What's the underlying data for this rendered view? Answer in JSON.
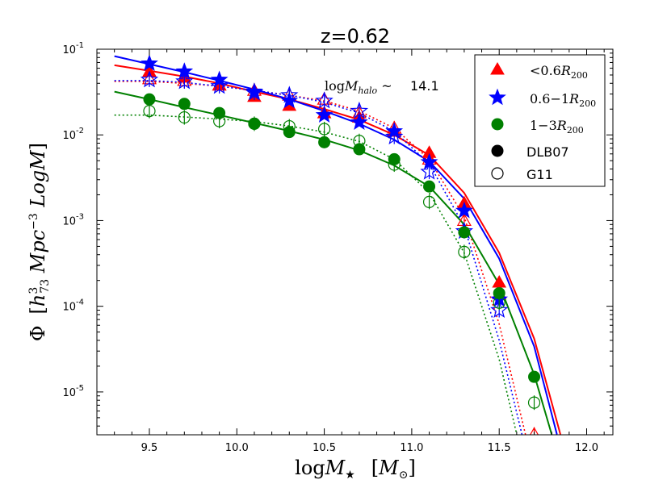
{
  "chart_data": {
    "type": "line",
    "title": "z=0.62",
    "xlabel": "logM★ [M⊙]",
    "ylabel": "Φ [h₇₃³ Mpc⁻³ LogM]",
    "xlim": [
      9.2,
      12.15
    ],
    "ylim_log10": [
      -5.5,
      -1
    ],
    "xticks": [
      "9.5",
      "10.0",
      "10.5",
      "11.0",
      "11.5",
      "12.0"
    ],
    "yticks": [
      {
        "base": "10",
        "exp": "-5",
        "log": -5
      },
      {
        "base": "10",
        "exp": "-4",
        "log": -4
      },
      {
        "base": "10",
        "exp": "-3",
        "log": -3
      },
      {
        "base": "10",
        "exp": "-2",
        "log": -2
      },
      {
        "base": "10",
        "exp": "-1",
        "log": -1
      }
    ],
    "annotation": {
      "label": "logM_halo ~",
      "value": "14.1"
    },
    "colors": {
      "red": "#ff0000",
      "blue": "#0000ff",
      "green": "#008000"
    },
    "x": [
      9.5,
      9.7,
      9.9,
      10.1,
      10.3,
      10.5,
      10.7,
      10.9,
      11.1,
      11.3,
      11.5,
      11.7
    ],
    "series": [
      {
        "name": "<0.6R200 DLB07",
        "color": "#ff0000",
        "marker": "triangle",
        "filled": true,
        "values": [
          0.055,
          0.047,
          0.038,
          0.028,
          0.022,
          0.018,
          0.016,
          0.011,
          0.0062,
          0.0016,
          0.00019,
          null
        ]
      },
      {
        "name": "<0.6R200 G11",
        "color": "#ff0000",
        "marker": "triangle",
        "filled": false,
        "values": [
          0.045,
          0.043,
          0.038,
          0.033,
          0.029,
          0.026,
          0.018,
          0.012,
          0.0052,
          0.001,
          0.00014,
          3.2e-06
        ]
      },
      {
        "name": "0.6-1R200 DLB07",
        "color": "#0000ff",
        "marker": "star",
        "filled": true,
        "values": [
          0.068,
          0.055,
          0.044,
          0.032,
          0.025,
          0.017,
          0.014,
          0.011,
          0.0048,
          0.0013,
          0.00012,
          null
        ]
      },
      {
        "name": "0.6-1R200 G11",
        "color": "#0000ff",
        "marker": "star",
        "filled": false,
        "values": [
          0.044,
          0.042,
          0.037,
          0.031,
          0.029,
          0.025,
          0.019,
          0.0095,
          0.0037,
          0.00075,
          9e-05,
          null
        ]
      },
      {
        "name": "1-3R200 DLB07",
        "color": "#008000",
        "marker": "circle",
        "filled": true,
        "values": [
          0.026,
          0.023,
          0.018,
          0.0135,
          0.0108,
          0.0082,
          0.0068,
          0.0052,
          0.0025,
          0.00073,
          0.000142,
          1.5e-05
        ]
      },
      {
        "name": "1-3R200 G11",
        "color": "#008000",
        "marker": "circle",
        "filled": false,
        "values": [
          0.019,
          0.016,
          0.0145,
          0.0135,
          0.0126,
          0.0117,
          0.0085,
          0.0045,
          0.00165,
          0.00043,
          0.00011,
          7.5e-06
        ]
      }
    ],
    "fits": [
      {
        "name": "<0.6R200 DLB07 fit",
        "color": "#ff0000",
        "style": "solid",
        "points": [
          [
            9.3,
            0.065
          ],
          [
            9.5,
            0.056
          ],
          [
            9.7,
            0.048
          ],
          [
            9.9,
            0.04
          ],
          [
            10.1,
            0.032
          ],
          [
            10.3,
            0.026
          ],
          [
            10.5,
            0.02
          ],
          [
            10.7,
            0.015
          ],
          [
            10.9,
            0.01
          ],
          [
            11.1,
            0.0058
          ],
          [
            11.3,
            0.0021
          ],
          [
            11.5,
            0.00042
          ],
          [
            11.7,
            4.2e-05
          ],
          [
            11.85,
            3.2e-06
          ]
        ]
      },
      {
        "name": "<0.6R200 G11 fit",
        "color": "#ff0000",
        "style": "dotted",
        "points": [
          [
            9.3,
            0.042
          ],
          [
            9.5,
            0.042
          ],
          [
            9.7,
            0.04
          ],
          [
            9.9,
            0.037
          ],
          [
            10.1,
            0.033
          ],
          [
            10.3,
            0.029
          ],
          [
            10.5,
            0.025
          ],
          [
            10.7,
            0.019
          ],
          [
            10.9,
            0.012
          ],
          [
            11.1,
            0.0052
          ],
          [
            11.3,
            0.0011
          ],
          [
            11.5,
            6.2e-05
          ],
          [
            11.65,
            3.2e-06
          ]
        ]
      },
      {
        "name": "0.6-1R200 DLB07 fit",
        "color": "#0000ff",
        "style": "solid",
        "points": [
          [
            9.3,
            0.083
          ],
          [
            9.5,
            0.067
          ],
          [
            9.7,
            0.054
          ],
          [
            9.9,
            0.043
          ],
          [
            10.1,
            0.034
          ],
          [
            10.3,
            0.026
          ],
          [
            10.5,
            0.019
          ],
          [
            10.7,
            0.0135
          ],
          [
            10.9,
            0.0088
          ],
          [
            11.1,
            0.0049
          ],
          [
            11.3,
            0.0018
          ],
          [
            11.5,
            0.00036
          ],
          [
            11.7,
            3.4e-05
          ],
          [
            11.83,
            3.2e-06
          ]
        ]
      },
      {
        "name": "0.6-1R200 G11 fit",
        "color": "#0000ff",
        "style": "dotted",
        "points": [
          [
            9.3,
            0.043
          ],
          [
            9.5,
            0.043
          ],
          [
            9.7,
            0.041
          ],
          [
            9.9,
            0.037
          ],
          [
            10.1,
            0.033
          ],
          [
            10.3,
            0.029
          ],
          [
            10.5,
            0.024
          ],
          [
            10.7,
            0.018
          ],
          [
            10.9,
            0.011
          ],
          [
            11.1,
            0.0046
          ],
          [
            11.3,
            0.00085
          ],
          [
            11.5,
            4e-05
          ],
          [
            11.63,
            3.2e-06
          ]
        ]
      },
      {
        "name": "1-3R200 DLB07 fit",
        "color": "#008000",
        "style": "solid",
        "points": [
          [
            9.3,
            0.032
          ],
          [
            9.5,
            0.026
          ],
          [
            9.7,
            0.021
          ],
          [
            9.9,
            0.017
          ],
          [
            10.1,
            0.0138
          ],
          [
            10.3,
            0.0111
          ],
          [
            10.5,
            0.0088
          ],
          [
            10.7,
            0.0066
          ],
          [
            10.9,
            0.0044
          ],
          [
            11.1,
            0.0025
          ],
          [
            11.3,
            0.0009
          ],
          [
            11.5,
            0.00018
          ],
          [
            11.7,
            1.6e-05
          ],
          [
            11.8,
            3.2e-06
          ]
        ]
      },
      {
        "name": "1-3R200 G11 fit",
        "color": "#008000",
        "style": "dotted",
        "points": [
          [
            9.3,
            0.017
          ],
          [
            9.5,
            0.017
          ],
          [
            9.7,
            0.0162
          ],
          [
            9.9,
            0.0153
          ],
          [
            10.1,
            0.0143
          ],
          [
            10.3,
            0.0127
          ],
          [
            10.5,
            0.0108
          ],
          [
            10.7,
            0.0084
          ],
          [
            10.9,
            0.0052
          ],
          [
            11.1,
            0.0021
          ],
          [
            11.3,
            0.00042
          ],
          [
            11.5,
            2.4e-05
          ],
          [
            11.6,
            3.2e-06
          ]
        ]
      }
    ],
    "legend": {
      "position": "top-right",
      "entries": [
        {
          "label": "<0.6R200",
          "color": "#ff0000",
          "marker": "triangle",
          "filled": true
        },
        {
          "label": "0.6-1R200",
          "color": "#0000ff",
          "marker": "star",
          "filled": true
        },
        {
          "label": "1-3R200",
          "color": "#008000",
          "marker": "circle",
          "filled": true
        },
        {
          "label": "DLB07",
          "color": "#000000",
          "marker": "circle",
          "filled": true
        },
        {
          "label": "G11",
          "color": "#000000",
          "marker": "circle",
          "filled": false
        }
      ]
    }
  }
}
